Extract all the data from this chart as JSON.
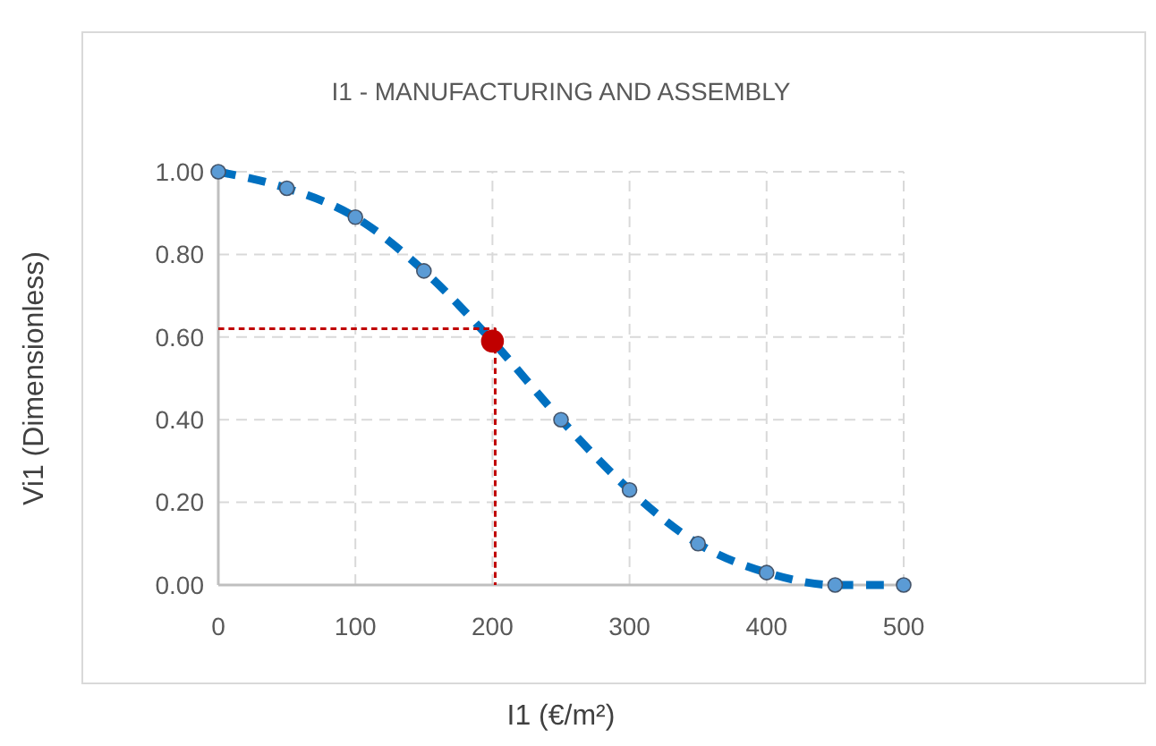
{
  "chart_data": {
    "type": "line",
    "title": "I1 - MANUFACTURING AND ASSEMBLY",
    "xlabel": "I1 (€/m²)",
    "ylabel": "Vi1 (Dimensionless)",
    "xlim": [
      0,
      500
    ],
    "xticks": [
      0,
      100,
      200,
      300,
      400,
      500
    ],
    "ylim": [
      0,
      1
    ],
    "yticks": [
      {
        "value": 0,
        "label": "0.00"
      },
      {
        "value": 0.2,
        "label": "0.20"
      },
      {
        "value": 0.4,
        "label": "0.40"
      },
      {
        "value": 0.6,
        "label": "0.60"
      },
      {
        "value": 0.8,
        "label": "0.80"
      },
      {
        "value": 1,
        "label": "1.00"
      }
    ],
    "grid": true,
    "series": [
      {
        "color": "#0070c0",
        "marker": "circle",
        "line_style": "dashed",
        "x": [
          0,
          50,
          100,
          150,
          200,
          250,
          300,
          350,
          400,
          450,
          500
        ],
        "values": [
          1.0,
          0.96,
          0.89,
          0.76,
          0.59,
          0.4,
          0.23,
          0.1,
          0.03,
          0.0,
          0.0
        ]
      },
      {
        "type": "line",
        "color": "#c00000",
        "marker": "none",
        "line_style": "dashed",
        "x": [
          0,
          202,
          202
        ],
        "values": [
          0.62,
          0.62,
          0
        ]
      },
      {
        "type": "scatter",
        "color": "#c00000",
        "marker": "circle",
        "x": [
          200
        ],
        "values": [
          0.59
        ]
      }
    ]
  }
}
